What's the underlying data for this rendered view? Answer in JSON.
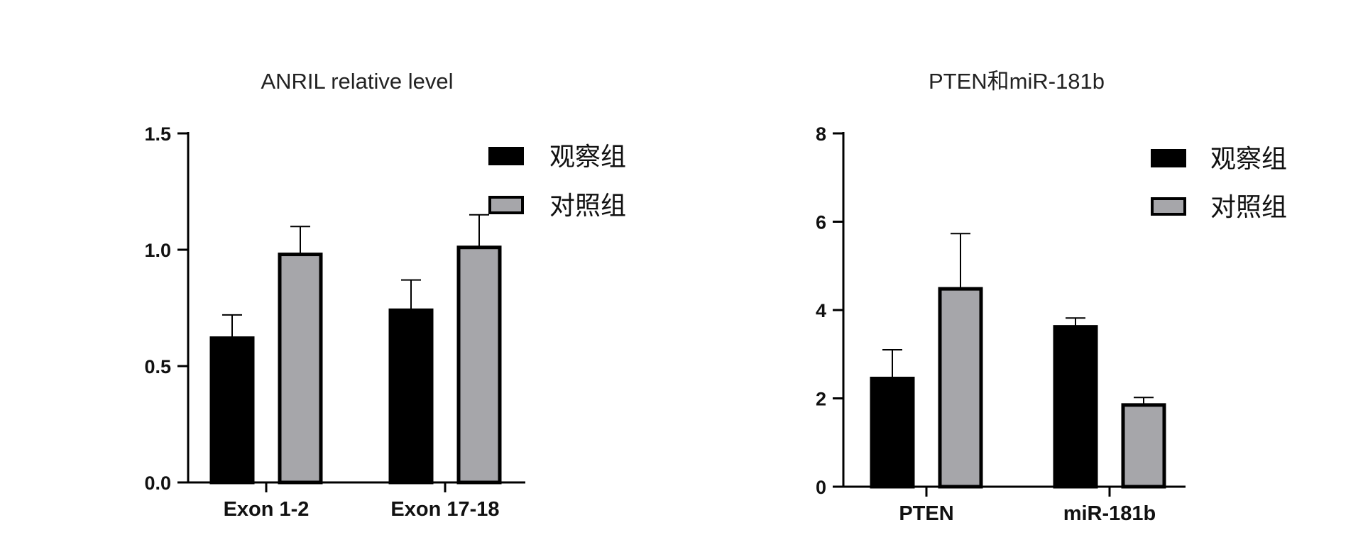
{
  "chart_data": [
    {
      "type": "bar",
      "title": "ANRIL relative level",
      "xlabel": "",
      "ylabel": "",
      "categories": [
        "Exon 1-2",
        "Exon 17-18"
      ],
      "series": [
        {
          "name": "观察组",
          "values": [
            0.62,
            0.74
          ],
          "errors": [
            0.1,
            0.13
          ],
          "color": "#000000"
        },
        {
          "name": "对照组",
          "values": [
            0.98,
            1.01
          ],
          "errors": [
            0.12,
            0.14
          ],
          "color": "#a6a6aa"
        }
      ],
      "ylim": [
        0,
        1.5
      ],
      "yticks": [
        0.0,
        0.5,
        1.0,
        1.5
      ],
      "ytick_labels": [
        "0.0",
        "0.5",
        "1.0",
        "1.5"
      ],
      "grid": false,
      "legend": "top-right"
    },
    {
      "type": "bar",
      "title": "PTEN和miR-181b",
      "xlabel": "",
      "ylabel": "",
      "categories": [
        "PTEN",
        "miR-181b"
      ],
      "series": [
        {
          "name": "观察组",
          "values": [
            2.45,
            3.62
          ],
          "errors": [
            0.65,
            0.2
          ],
          "color": "#000000"
        },
        {
          "name": "对照组",
          "values": [
            4.48,
            1.85
          ],
          "errors": [
            1.25,
            0.17
          ],
          "color": "#a6a6aa"
        }
      ],
      "ylim": [
        0,
        8
      ],
      "yticks": [
        0,
        2,
        4,
        6,
        8
      ],
      "ytick_labels": [
        "0",
        "2",
        "4",
        "6",
        "8"
      ],
      "grid": false,
      "legend": "top-right"
    }
  ]
}
